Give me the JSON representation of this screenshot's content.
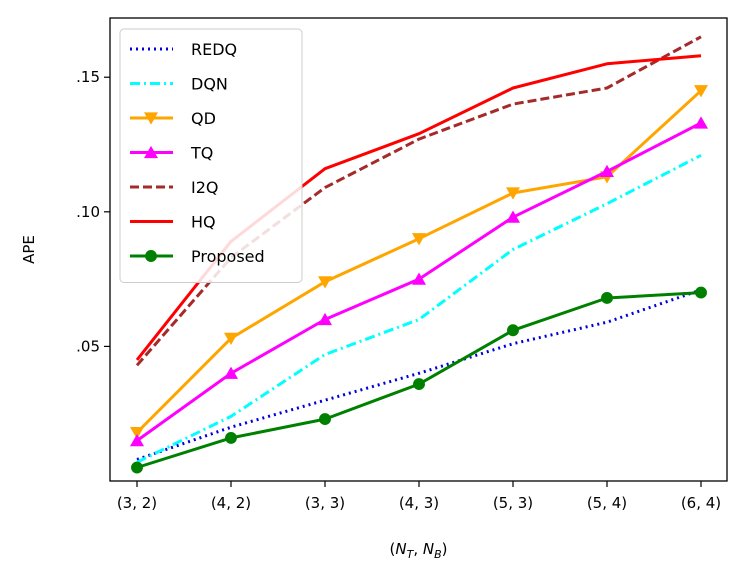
{
  "chart_data": {
    "type": "line",
    "title": "",
    "xlabel": "(N_T, N_B)",
    "xlabel_parts": {
      "open": "(",
      "n1": "N",
      "s1": "T",
      "comma": ", ",
      "n2": "N",
      "s2": "B",
      "close": ")"
    },
    "ylabel": "APE",
    "categories": [
      "(3, 2)",
      "(4, 2)",
      "(3, 3)",
      "(4, 3)",
      "(5, 3)",
      "(5, 4)",
      "(6, 4)"
    ],
    "ylim": [
      0.0,
      0.172
    ],
    "yticks": [
      0.05,
      0.1,
      0.15
    ],
    "ytick_labels": [
      ".05",
      ".10",
      ".15"
    ],
    "grid": false,
    "legend_position": "top-left",
    "series": [
      {
        "name": "REDQ",
        "color": "#0000dd",
        "dash": "dotted",
        "marker": "none",
        "values": [
          0.008,
          0.02,
          0.03,
          0.04,
          0.051,
          0.059,
          0.071
        ]
      },
      {
        "name": "DQN",
        "color": "#00ffff",
        "dash": "dashdot",
        "marker": "none",
        "values": [
          0.007,
          0.024,
          0.047,
          0.06,
          0.086,
          0.103,
          0.121
        ]
      },
      {
        "name": "QD",
        "color": "#ffa500",
        "dash": "solid",
        "marker": "triangle-down",
        "values": [
          0.018,
          0.053,
          0.074,
          0.09,
          0.107,
          0.113,
          0.145
        ]
      },
      {
        "name": "TQ",
        "color": "#ff00ff",
        "dash": "solid",
        "marker": "triangle-up",
        "values": [
          0.015,
          0.04,
          0.06,
          0.075,
          0.098,
          0.115,
          0.133
        ]
      },
      {
        "name": "I2Q",
        "color": "#a52a2a",
        "dash": "dashed",
        "marker": "none",
        "values": [
          0.043,
          0.083,
          0.109,
          0.127,
          0.14,
          0.146,
          0.165
        ]
      },
      {
        "name": "HQ",
        "color": "#ff0000",
        "dash": "solid",
        "marker": "none",
        "values": [
          0.045,
          0.089,
          0.116,
          0.129,
          0.146,
          0.155,
          0.158
        ]
      },
      {
        "name": "Proposed",
        "color": "#008000",
        "dash": "solid",
        "marker": "circle",
        "values": [
          0.005,
          0.016,
          0.023,
          0.036,
          0.056,
          0.068,
          0.07
        ]
      }
    ]
  }
}
